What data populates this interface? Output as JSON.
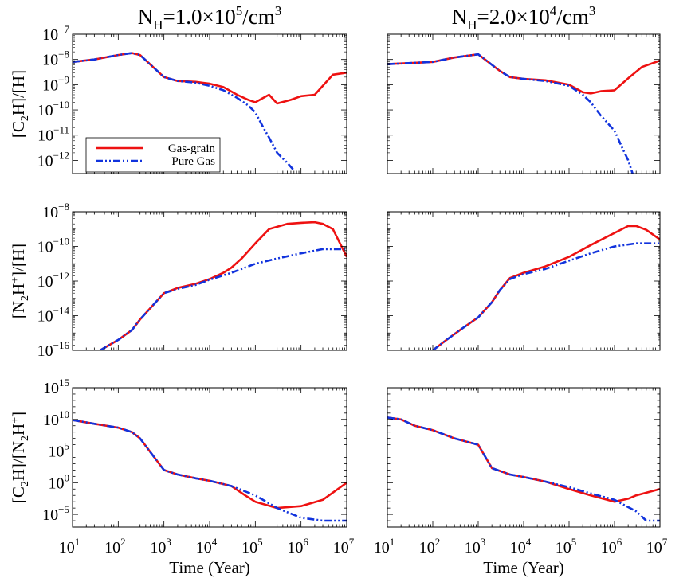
{
  "figure": {
    "column_titles": [
      {
        "base": "N",
        "sub": "H",
        "text": "=1.0×10",
        "sup": "5",
        "unit": "/cm",
        "unit_sup": "3"
      },
      {
        "base": "N",
        "sub": "H",
        "text": "=2.0×10",
        "sup": "4",
        "unit": "/cm",
        "unit_sup": "3"
      }
    ],
    "row_ylabels": [
      [
        {
          "t": "[C"
        },
        {
          "t": "2",
          "s": "sub"
        },
        {
          "t": "H]/[H]"
        }
      ],
      [
        {
          "t": "[N"
        },
        {
          "t": "2",
          "s": "sub"
        },
        {
          "t": "H"
        },
        {
          "t": "+",
          "s": "sup"
        },
        {
          "t": "]/[H]"
        }
      ],
      [
        {
          "t": "[C"
        },
        {
          "t": "2",
          "s": "sub"
        },
        {
          "t": "H]/[N"
        },
        {
          "t": "2",
          "s": "sub"
        },
        {
          "t": "H"
        },
        {
          "t": "+",
          "s": "sup"
        },
        {
          "t": "]"
        }
      ]
    ],
    "xlabel": "Time (Year)",
    "legend": [
      {
        "label": "Gas-grain",
        "color": "#ee1111",
        "style": "solid"
      },
      {
        "label": "Pure Gas",
        "color": "#1133dd",
        "style": "dash-dot-dot"
      }
    ],
    "legend_location": "lower-left of top-left panel"
  },
  "chart_data": [
    {
      "type": "line",
      "panel": "row1-col1",
      "xscale": "log",
      "yscale": "log",
      "xlim": [
        10,
        10000000
      ],
      "ylim": [
        3e-13,
        1e-07
      ],
      "xtick_exponents": [
        1,
        2,
        3,
        4,
        5,
        6,
        7
      ],
      "ytick_exponents": [
        -12,
        -11,
        -10,
        -9,
        -8,
        -7
      ],
      "series": [
        {
          "name": "Gas-grain",
          "x": [
            10,
            30,
            100,
            200,
            300,
            1000,
            2000,
            5000,
            10000,
            20000,
            40000,
            70000,
            100000,
            150000,
            200000,
            300000,
            600000,
            1000000,
            2000000,
            5000000,
            10000000
          ],
          "y": [
            8e-09,
            1e-08,
            1.5e-08,
            1.8e-08,
            1.5e-08,
            2e-09,
            1.4e-09,
            1.3e-09,
            1.1e-09,
            8e-10,
            4e-10,
            2.5e-10,
            2e-10,
            3e-10,
            4e-10,
            1.8e-10,
            2.5e-10,
            3.5e-10,
            4e-10,
            2.5e-09,
            3e-09
          ]
        },
        {
          "name": "Pure Gas",
          "x": [
            10,
            30,
            100,
            200,
            300,
            1000,
            2000,
            5000,
            10000,
            20000,
            40000,
            70000,
            100000,
            150000,
            200000,
            300000,
            500000,
            700000
          ],
          "y": [
            8e-09,
            1e-08,
            1.5e-08,
            1.8e-08,
            1.5e-08,
            2e-09,
            1.4e-09,
            1.2e-09,
            9e-10,
            6e-10,
            3e-10,
            1.5e-10,
            8e-11,
            2e-11,
            8e-12,
            2e-12,
            8e-13,
            4e-13
          ]
        }
      ]
    },
    {
      "type": "line",
      "panel": "row1-col2",
      "xscale": "log",
      "yscale": "log",
      "xlim": [
        10,
        10000000
      ],
      "ylim": [
        3e-13,
        1e-07
      ],
      "xtick_exponents": [
        1,
        2,
        3,
        4,
        5,
        6,
        7
      ],
      "ytick_exponents": [
        -12,
        -11,
        -10,
        -9,
        -8,
        -7
      ],
      "series": [
        {
          "name": "Gas-grain",
          "x": [
            10,
            100,
            300,
            1000,
            3000,
            5000,
            10000,
            30000,
            100000,
            200000,
            300000,
            500000,
            1000000,
            2000000,
            4000000,
            10000000
          ],
          "y": [
            6.5e-09,
            8e-09,
            1.2e-08,
            1.6e-08,
            3.5e-09,
            2e-09,
            1.7e-09,
            1.5e-09,
            1e-09,
            5e-10,
            4.5e-10,
            5.5e-10,
            6e-10,
            1.8e-09,
            5e-09,
            9e-09
          ]
        },
        {
          "name": "Pure Gas",
          "x": [
            10,
            100,
            300,
            1000,
            3000,
            5000,
            10000,
            30000,
            100000,
            200000,
            300000,
            500000,
            1000000,
            1500000,
            2000000,
            2500000
          ],
          "y": [
            6.5e-09,
            8e-09,
            1.2e-08,
            1.6e-08,
            3.5e-09,
            2e-09,
            1.7e-09,
            1.4e-09,
            9e-10,
            4e-10,
            2e-10,
            6e-11,
            1.5e-11,
            3e-12,
            1e-12,
            3e-13
          ]
        }
      ]
    },
    {
      "type": "line",
      "panel": "row2-col1",
      "xscale": "log",
      "yscale": "log",
      "xlim": [
        10,
        10000000
      ],
      "ylim": [
        1e-16,
        1e-08
      ],
      "xtick_exponents": [
        1,
        2,
        3,
        4,
        5,
        6,
        7
      ],
      "ytick_exponents": [
        -16,
        -14,
        -12,
        -10,
        -8
      ],
      "series": [
        {
          "name": "Gas-grain",
          "x": [
            40,
            100,
            200,
            300,
            1000,
            2000,
            5000,
            10000,
            20000,
            30000,
            50000,
            100000,
            200000,
            500000,
            1000000,
            2000000,
            3000000,
            5000000,
            10000000
          ],
          "y": [
            1e-16,
            4e-16,
            1.5e-15,
            6e-15,
            2e-13,
            4e-13,
            7e-13,
            1.3e-12,
            3e-12,
            6e-12,
            2e-11,
            1.5e-10,
            1e-09,
            2e-09,
            2.3e-09,
            2.5e-09,
            2e-09,
            1e-09,
            2.5e-11
          ]
        },
        {
          "name": "Pure Gas",
          "x": [
            40,
            100,
            200,
            300,
            1000,
            2000,
            5000,
            10000,
            30000,
            100000,
            300000,
            1000000,
            3000000,
            5000000,
            10000000
          ],
          "y": [
            1e-16,
            4e-16,
            1.5e-15,
            6e-15,
            2e-13,
            3.5e-13,
            6e-13,
            1.2e-12,
            3e-12,
            1e-11,
            2e-11,
            4e-11,
            7e-11,
            7e-11,
            7e-11
          ]
        }
      ]
    },
    {
      "type": "line",
      "panel": "row2-col2",
      "xscale": "log",
      "yscale": "log",
      "xlim": [
        10,
        10000000
      ],
      "ylim": [
        1e-16,
        1e-08
      ],
      "xtick_exponents": [
        1,
        2,
        3,
        4,
        5,
        6,
        7
      ],
      "ytick_exponents": [
        -16,
        -14,
        -12,
        -10,
        -8
      ],
      "series": [
        {
          "name": "Gas-grain",
          "x": [
            100,
            200,
            400,
            1000,
            2000,
            3000,
            5000,
            10000,
            30000,
            100000,
            300000,
            1000000,
            2000000,
            3000000,
            5000000,
            10000000
          ],
          "y": [
            1e-16,
            4e-16,
            1.5e-15,
            8e-15,
            6e-14,
            3e-13,
            1.5e-12,
            3e-12,
            7e-12,
            2.5e-11,
            1.2e-10,
            6e-10,
            1.5e-09,
            1.5e-09,
            9e-10,
            2.5e-10
          ]
        },
        {
          "name": "Pure Gas",
          "x": [
            100,
            200,
            400,
            1000,
            2000,
            3000,
            5000,
            10000,
            30000,
            100000,
            300000,
            1000000,
            3000000,
            5000000,
            10000000
          ],
          "y": [
            1e-16,
            4e-16,
            1.5e-15,
            8e-15,
            6e-14,
            3e-13,
            1.3e-12,
            2.5e-12,
            5e-12,
            1.5e-11,
            4e-11,
            1e-10,
            1.5e-10,
            1.5e-10,
            1.5e-10
          ]
        }
      ]
    },
    {
      "type": "line",
      "panel": "row3-col1",
      "xscale": "log",
      "yscale": "log",
      "xlim": [
        10,
        10000000
      ],
      "ylim": [
        1e-07,
        1000000000000000.0
      ],
      "xtick_exponents": [
        1,
        2,
        3,
        4,
        5,
        6,
        7
      ],
      "ytick_exponents": [
        -5,
        0,
        5,
        10,
        15
      ],
      "series": [
        {
          "name": "Gas-grain",
          "x": [
            10,
            30,
            100,
            200,
            300,
            1000,
            2000,
            5000,
            10000,
            30000,
            60000,
            100000,
            300000,
            1000000,
            3000000,
            10000000
          ],
          "y": [
            8000000000.0,
            2000000000.0,
            500000000.0,
            100000000.0,
            10000000.0,
            100,
            20,
            5,
            2,
            0.3,
            0.01,
            0.001,
            0.0001,
            0.0002,
            0.002,
            1
          ]
        },
        {
          "name": "Pure Gas",
          "x": [
            10,
            30,
            100,
            200,
            300,
            1000,
            2000,
            5000,
            10000,
            30000,
            100000,
            300000,
            1000000,
            3000000,
            10000000
          ],
          "y": [
            8000000000.0,
            2000000000.0,
            500000000.0,
            100000000.0,
            10000000.0,
            100,
            20,
            5,
            2,
            0.3,
            0.01,
            0.0001,
            3e-06,
            1e-06,
            1e-06
          ]
        }
      ]
    },
    {
      "type": "line",
      "panel": "row3-col2",
      "xscale": "log",
      "yscale": "log",
      "xlim": [
        10,
        10000000
      ],
      "ylim": [
        1e-07,
        1000000000000000.0
      ],
      "xtick_exponents": [
        1,
        2,
        3,
        4,
        5,
        6,
        7
      ],
      "ytick_exponents": [
        -5,
        0,
        5,
        10,
        15
      ],
      "series": [
        {
          "name": "Gas-grain",
          "x": [
            10,
            20,
            40,
            100,
            300,
            1000,
            2000,
            5000,
            10000,
            30000,
            100000,
            300000,
            1000000,
            2000000,
            3000000,
            10000000
          ],
          "y": [
            20000000000.0,
            10000000000.0,
            1000000000.0,
            200000000.0,
            10000000.0,
            1000000.0,
            200,
            20,
            8,
            1.5,
            0.1,
            0.01,
            0.001,
            0.003,
            0.01,
            0.1
          ]
        },
        {
          "name": "Pure Gas",
          "x": [
            10,
            20,
            40,
            100,
            300,
            1000,
            2000,
            5000,
            10000,
            30000,
            100000,
            300000,
            1000000,
            3000000,
            5000000,
            10000000
          ],
          "y": [
            20000000000.0,
            10000000000.0,
            1000000000.0,
            200000000.0,
            10000000.0,
            1000000.0,
            200,
            20,
            8,
            1.5,
            0.2,
            0.02,
            0.002,
            3e-05,
            1e-06,
            1e-06
          ]
        }
      ]
    }
  ]
}
